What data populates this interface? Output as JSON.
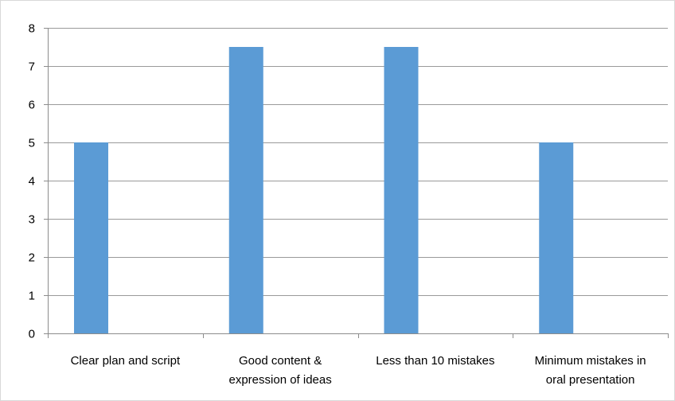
{
  "chart_data": {
    "type": "bar",
    "categories": [
      [
        "Clear plan and script"
      ],
      [
        "Good content &",
        "expression of ideas"
      ],
      [
        "Less than 10 mistakes"
      ],
      [
        "Minimum mistakes in",
        "oral presentation"
      ]
    ],
    "values": [
      5,
      7.5,
      7.5,
      5
    ],
    "ylim": [
      0,
      8
    ],
    "yticks": [
      "0",
      "1",
      "2",
      "3",
      "4",
      "5",
      "6",
      "7",
      "8"
    ],
    "grid": true,
    "legend": "none",
    "bar_color": "#5b9bd5",
    "title": "",
    "xlabel": "",
    "ylabel": ""
  }
}
